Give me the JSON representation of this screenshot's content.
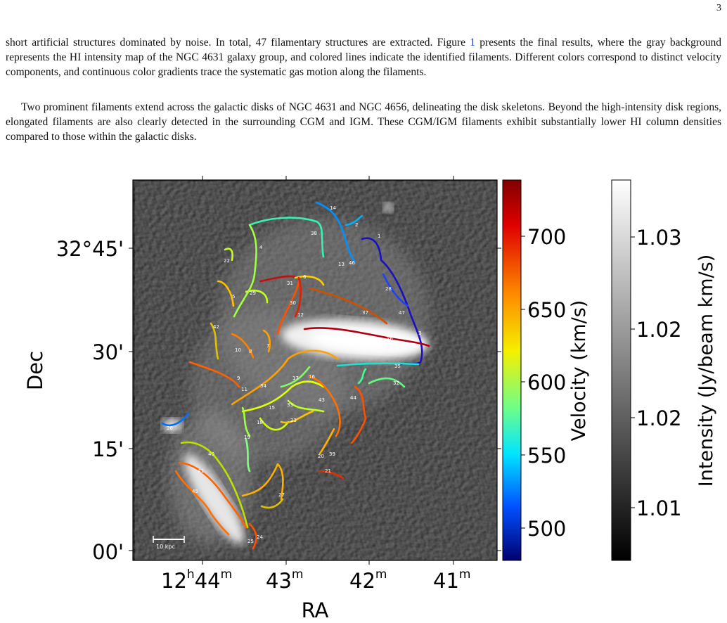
{
  "page": {
    "number": "3"
  },
  "paragraphs": {
    "p1_part1": "short artificial structures dominated by noise. In total, 47 filamentary structures are extracted. Figure ",
    "p1_ref": "1",
    "p1_part2": " presents the final results, where the gray background represents the HI intensity map of the NGC 4631 galaxy group, and colored lines indicate the identified filaments. Different colors correspond to distinct velocity components, and continuous color gradients trace the systematic gas motion along the filaments.",
    "p2": "Two prominent filaments extend across the galactic disks of NGC 4631 and NGC 4656, delineating the disk skeletons. Beyond the high-intensity disk regions, elongated filaments are also clearly detected in the surrounding CGM and IGM. These CGM/IGM filaments exhibit substantially lower HI column densities compared to those within the galactic disks."
  },
  "figure": {
    "x_axis_label": "RA",
    "y_axis_label": "Dec",
    "x_ticks": [
      {
        "h": "12",
        "hs": "h",
        "m": "44",
        "ms": "m"
      },
      {
        "m": "43",
        "ms": "m"
      },
      {
        "m": "42",
        "ms": "m"
      },
      {
        "m": "41",
        "ms": "m"
      }
    ],
    "y_ticks": [
      "32°45'",
      "30'",
      "15'",
      "00'"
    ],
    "scale_bar_label": "10 kpc",
    "velocity_colorbar": {
      "label": "Velocity (km/s)",
      "ticks": [
        "700",
        "650",
        "600",
        "550",
        "500"
      ]
    },
    "intensity_colorbar": {
      "label": "Intensity (Jy/beam km/s)",
      "ticks": [
        "1.03",
        "1.02",
        "1.02",
        "1.01"
      ]
    },
    "filament_labels": [
      "1",
      "2",
      "3",
      "4",
      "5",
      "6",
      "7",
      "8",
      "9",
      "10",
      "11",
      "12",
      "13",
      "14",
      "15",
      "16",
      "17",
      "18",
      "19",
      "20",
      "21",
      "22",
      "23",
      "24",
      "25",
      "26",
      "27",
      "28",
      "29",
      "30",
      "31",
      "32",
      "33",
      "34",
      "35",
      "36",
      "37",
      "38",
      "39",
      "40",
      "41",
      "42",
      "43",
      "44",
      "45",
      "46",
      "47"
    ],
    "colors": {
      "low_velocity": "#1a0080",
      "high_velocity": "#8b0000",
      "background": "#555555"
    }
  }
}
